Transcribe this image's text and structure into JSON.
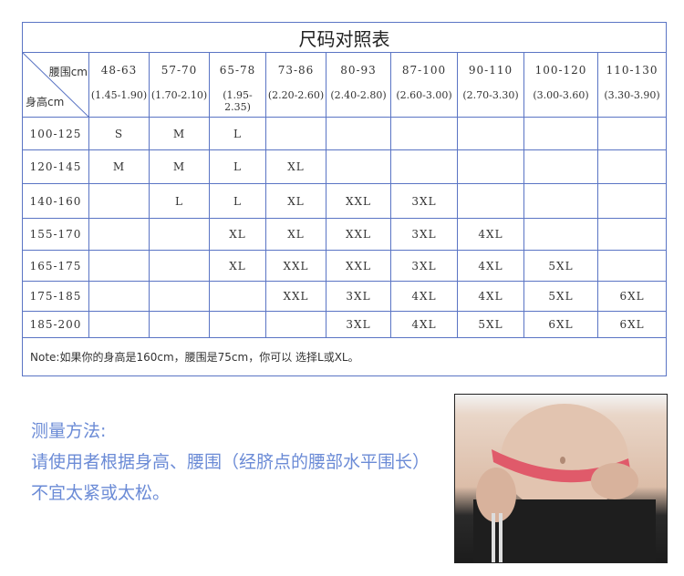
{
  "title": "尺码对照表",
  "corner": {
    "waist_label": "腰围cm",
    "height_label": "身高cm"
  },
  "columns": [
    {
      "range": "48-63",
      "weight": "(1.45-1.90)"
    },
    {
      "range": "57-70",
      "weight": "(1.70-2.10)"
    },
    {
      "range": "65-78",
      "weight": "(1.95-2.35)"
    },
    {
      "range": "73-86",
      "weight": "(2.20-2.60)"
    },
    {
      "range": "80-93",
      "weight": "(2.40-2.80)"
    },
    {
      "range": "87-100",
      "weight": "(2.60-3.00)"
    },
    {
      "range": "90-110",
      "weight": "(2.70-3.30)"
    },
    {
      "range": "100-120",
      "weight": "(3.00-3.60)"
    },
    {
      "range": "110-130",
      "weight": "(3.30-3.90)"
    }
  ],
  "rows": [
    {
      "height": "100-125",
      "sizes": [
        "S",
        "M",
        "L",
        "",
        "",
        "",
        "",
        "",
        ""
      ]
    },
    {
      "height": "120-145",
      "sizes": [
        "M",
        "M",
        "L",
        "XL",
        "",
        "",
        "",
        "",
        ""
      ]
    },
    {
      "height": "140-160",
      "sizes": [
        "",
        "L",
        "L",
        "XL",
        "XXL",
        "3XL",
        "",
        "",
        ""
      ]
    },
    {
      "height": "155-170",
      "sizes": [
        "",
        "",
        "XL",
        "XL",
        "XXL",
        "3XL",
        "4XL",
        "",
        ""
      ]
    },
    {
      "height": "165-175",
      "sizes": [
        "",
        "",
        "XL",
        "XXL",
        "XXL",
        "3XL",
        "4XL",
        "5XL",
        ""
      ]
    },
    {
      "height": "175-185",
      "sizes": [
        "",
        "",
        "",
        "XXL",
        "3XL",
        "4XL",
        "4XL",
        "5XL",
        "6XL"
      ]
    },
    {
      "height": "185-200",
      "sizes": [
        "",
        "",
        "",
        "",
        "3XL",
        "4XL",
        "5XL",
        "6XL",
        "6XL"
      ]
    }
  ],
  "note": "Note:如果你的身高是160cm，腰围是75cm，你可以 选择L或XL。",
  "method": {
    "heading": "测量方法:",
    "body": "请使用者根据身高、腰围（经脐点的腰部水平围长）不宜太紧或太松。"
  },
  "colors": {
    "grid": "#5a74c4",
    "method_text": "#6b8bd6"
  }
}
